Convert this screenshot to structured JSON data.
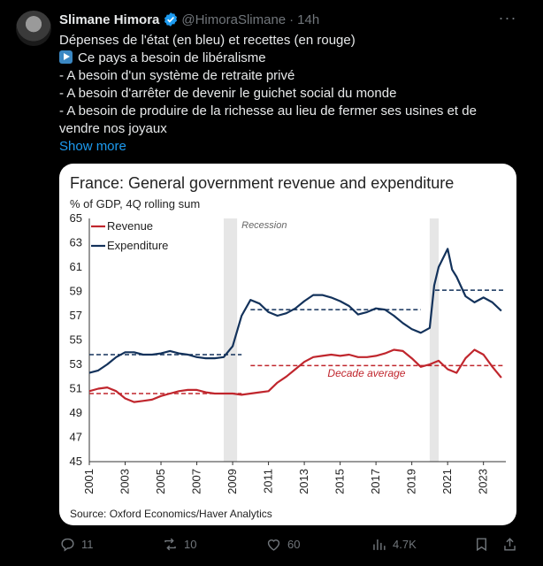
{
  "user": {
    "display_name": "Slimane Himora",
    "handle": "@HimoraSlimane",
    "separator": "·",
    "time": "14h"
  },
  "more_menu": "···",
  "tweet": {
    "lines": [
      "Dépenses de l'état (en bleu) et recettes (en rouge)",
      "Ce pays a besoin de libéralisme",
      "- A besoin d'un système de retraite privé",
      "- A besoin d'arrêter de devenir le guichet social du monde",
      "- A besoin de produire de la richesse au lieu de fermer ses usines et de",
      "vendre nos joyaux"
    ],
    "emoji": "play-button-emoji",
    "show_more": "Show more"
  },
  "chart_data": {
    "type": "line",
    "title": "France: General government revenue and expenditure",
    "subtitle": "% of GDP, 4Q rolling sum",
    "ylim": [
      45,
      65
    ],
    "yticks": [
      45,
      47,
      49,
      51,
      53,
      55,
      57,
      59,
      61,
      63,
      65
    ],
    "xlim": [
      2001,
      2024.25
    ],
    "xticks": [
      "2001",
      "2003",
      "2005",
      "2007",
      "2009",
      "2011",
      "2013",
      "2015",
      "2017",
      "2019",
      "2021",
      "2023"
    ],
    "recession_label": "Recession",
    "recessions": [
      [
        2008.5,
        2009.25
      ],
      [
        2020.0,
        2020.5
      ]
    ],
    "decade_average_label": "Decade average",
    "source": "Source: Oxford Economics/Haver Analytics",
    "series": [
      {
        "name": "Revenue",
        "color": "#c0262d",
        "x": [
          2001,
          2001.5,
          2002,
          2002.5,
          2003,
          2003.5,
          2004,
          2004.5,
          2005,
          2005.5,
          2006,
          2006.5,
          2007,
          2007.5,
          2008,
          2008.5,
          2009,
          2009.5,
          2010,
          2010.5,
          2011,
          2011.5,
          2012,
          2012.5,
          2013,
          2013.5,
          2014,
          2014.5,
          2015,
          2015.5,
          2016,
          2016.5,
          2017,
          2017.5,
          2018,
          2018.5,
          2019,
          2019.5,
          2020,
          2020.5,
          2021,
          2021.5,
          2022,
          2022.5,
          2023,
          2023.5,
          2024
        ],
        "values": [
          50.8,
          51.0,
          51.1,
          50.8,
          50.2,
          49.9,
          50.0,
          50.1,
          50.4,
          50.6,
          50.8,
          50.9,
          50.9,
          50.7,
          50.6,
          50.6,
          50.6,
          50.5,
          50.6,
          50.7,
          50.8,
          51.5,
          52.0,
          52.6,
          53.2,
          53.6,
          53.7,
          53.8,
          53.7,
          53.8,
          53.6,
          53.6,
          53.7,
          53.9,
          54.2,
          54.1,
          53.5,
          52.8,
          53.0,
          53.3,
          52.6,
          52.3,
          53.5,
          54.2,
          53.8,
          52.8,
          51.9
        ]
      },
      {
        "name": "Expenditure",
        "color": "#13325b",
        "x": [
          2001,
          2001.5,
          2002,
          2002.5,
          2003,
          2003.5,
          2004,
          2004.5,
          2005,
          2005.5,
          2006,
          2006.5,
          2007,
          2007.5,
          2008,
          2008.5,
          2009,
          2009.5,
          2010,
          2010.5,
          2011,
          2011.5,
          2012,
          2012.5,
          2013,
          2013.5,
          2014,
          2014.5,
          2015,
          2015.5,
          2016,
          2016.5,
          2017,
          2017.5,
          2018,
          2018.5,
          2019,
          2019.5,
          2020,
          2020.25,
          2020.5,
          2021,
          2021.25,
          2021.5,
          2022,
          2022.5,
          2023,
          2023.5,
          2024
        ],
        "values": [
          52.3,
          52.5,
          53.0,
          53.6,
          54.0,
          54.0,
          53.8,
          53.8,
          53.9,
          54.1,
          53.9,
          53.8,
          53.6,
          53.5,
          53.5,
          53.6,
          54.5,
          57.0,
          58.3,
          58.0,
          57.3,
          57.0,
          57.2,
          57.6,
          58.2,
          58.7,
          58.7,
          58.5,
          58.2,
          57.8,
          57.1,
          57.3,
          57.6,
          57.5,
          57.0,
          56.4,
          55.9,
          55.6,
          56.0,
          59.5,
          61.0,
          62.5,
          60.8,
          60.2,
          58.6,
          58.1,
          58.5,
          58.1,
          57.4
        ]
      }
    ],
    "decade_averages": [
      {
        "series": "Expenditure",
        "x": [
          2001,
          2009.5
        ],
        "value": 53.8
      },
      {
        "series": "Expenditure",
        "x": [
          2010,
          2019.5
        ],
        "value": 57.5
      },
      {
        "series": "Expenditure",
        "x": [
          2020.3,
          2024.1
        ],
        "value": 59.1
      },
      {
        "series": "Revenue",
        "x": [
          2001,
          2009.5
        ],
        "value": 50.6
      },
      {
        "series": "Revenue",
        "x": [
          2010,
          2024.1
        ],
        "value": 52.9
      }
    ],
    "grid": false,
    "legend": "top-left"
  },
  "actions": {
    "replies": "11",
    "reposts": "10",
    "likes": "60",
    "views": "4.7K"
  }
}
